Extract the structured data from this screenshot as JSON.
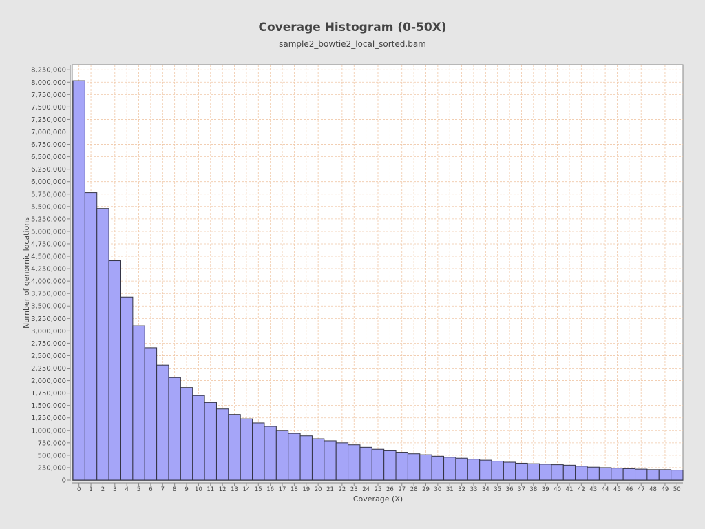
{
  "chart_data": {
    "type": "bar",
    "title": "Coverage Histogram (0-50X)",
    "subtitle": "sample2_bowtie2_local_sorted.bam",
    "xlabel": "Coverage (X)",
    "ylabel": "Number of genomic locations",
    "ylim": [
      0,
      8350000
    ],
    "ytick_step": 250000,
    "grid": true,
    "categories": [
      "0",
      "1",
      "2",
      "3",
      "4",
      "5",
      "6",
      "7",
      "8",
      "9",
      "10",
      "11",
      "12",
      "13",
      "14",
      "15",
      "16",
      "17",
      "18",
      "19",
      "20",
      "21",
      "22",
      "23",
      "24",
      "25",
      "26",
      "27",
      "28",
      "29",
      "30",
      "31",
      "32",
      "33",
      "34",
      "35",
      "36",
      "37",
      "38",
      "39",
      "40",
      "41",
      "42",
      "43",
      "44",
      "45",
      "46",
      "47",
      "48",
      "49",
      "50"
    ],
    "values": [
      8030000,
      5780000,
      5460000,
      4410000,
      3680000,
      3100000,
      2660000,
      2310000,
      2060000,
      1860000,
      1700000,
      1560000,
      1430000,
      1320000,
      1230000,
      1150000,
      1080000,
      1000000,
      940000,
      890000,
      830000,
      790000,
      750000,
      710000,
      660000,
      620000,
      590000,
      560000,
      530000,
      510000,
      480000,
      460000,
      440000,
      420000,
      400000,
      380000,
      360000,
      340000,
      330000,
      320000,
      310000,
      300000,
      280000,
      260000,
      250000,
      240000,
      230000,
      220000,
      210000,
      210000,
      200000
    ],
    "colors": {
      "bar_fill": "#a5a5f8",
      "bar_stroke": "#333344",
      "grid": "#f0c8a8",
      "plot_bg": "#ffffff",
      "page_bg": "#e6e6e6"
    }
  }
}
